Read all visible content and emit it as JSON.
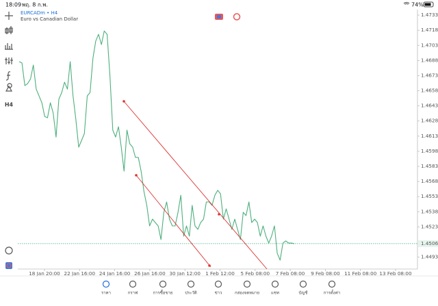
{
  "status_bar": {
    "time": "18:09",
    "date": "พฤ. 8 ก.พ.",
    "battery": "74%"
  },
  "symbol": {
    "name": "EURCADm • H4",
    "description": "Euro vs Canadian Dollar"
  },
  "left_toolbar": {
    "timeframe": "H4"
  },
  "chart": {
    "type": "line",
    "ylim": [
      1.44812,
      1.47378
    ],
    "yticks": [
      {
        "value": 1.4733,
        "label": "1.47330"
      },
      {
        "value": 1.4718,
        "label": "1.47180"
      },
      {
        "value": 1.4703,
        "label": "1.47030"
      },
      {
        "value": 1.4688,
        "label": "1.46880"
      },
      {
        "value": 1.4673,
        "label": "1.46730"
      },
      {
        "value": 1.4658,
        "label": "1.46580"
      },
      {
        "value": 1.4643,
        "label": "1.46430"
      },
      {
        "value": 1.4628,
        "label": "1.46280"
      },
      {
        "value": 1.4613,
        "label": "1.46130"
      },
      {
        "value": 1.4598,
        "label": "1.45980"
      },
      {
        "value": 1.4583,
        "label": "1.45830"
      },
      {
        "value": 1.4568,
        "label": "1.45680"
      },
      {
        "value": 1.4553,
        "label": "1.45530"
      },
      {
        "value": 1.4538,
        "label": "1.45380"
      },
      {
        "value": 1.4523,
        "label": "1.45230"
      },
      {
        "value": 1.4493,
        "label": "1.44930"
      }
    ],
    "current_price": {
      "value": 1.45064,
      "label": "1.45064"
    },
    "x_labels": [
      "18 Jan 20:00",
      "22 Jan 16:00",
      "24 Jan 16:00",
      "26 Jan 16:00",
      "30 Jan 12:00",
      "1 Feb 12:00",
      "5 Feb 08:00",
      "7 Feb 08:00",
      "9 Feb 08:00",
      "11 Feb 08:00",
      "13 Feb 08:00"
    ],
    "series": [
      {
        "color": "#4caf7d",
        "values": [
          1.46869,
          1.46855,
          1.46631,
          1.46651,
          1.46698,
          1.46835,
          1.46596,
          1.46529,
          1.46461,
          1.46325,
          1.46312,
          1.46461,
          1.46359,
          1.46121,
          1.46496,
          1.46563,
          1.46665,
          1.46596,
          1.46869,
          1.46529,
          1.46292,
          1.4602,
          1.46088,
          1.46156,
          1.46529,
          1.46563,
          1.46902,
          1.47073,
          1.4714,
          1.47038,
          1.47173,
          1.4714,
          1.46733,
          1.4619,
          1.46121,
          1.46223,
          1.4602,
          1.45783,
          1.4619,
          1.46054,
          1.4602,
          1.45919,
          1.45919,
          1.45783,
          1.45579,
          1.45443,
          1.4524,
          1.45307,
          1.45273,
          1.4524,
          1.45104,
          1.45375,
          1.45477,
          1.45307,
          1.4524,
          1.4524,
          1.45375,
          1.45544,
          1.45138,
          1.4524,
          1.45138,
          1.45443,
          1.4524,
          1.45206,
          1.45273,
          1.45307,
          1.45477,
          1.45477,
          1.45443,
          1.45544,
          1.45593,
          1.45558,
          1.45307,
          1.45409,
          1.45307,
          1.45206,
          1.45307,
          1.45206,
          1.45104,
          1.45375,
          1.45342,
          1.45477,
          1.45273,
          1.45307,
          1.45273,
          1.45138,
          1.4524,
          1.45138,
          1.45069,
          1.45138,
          1.4524,
          1.44969,
          1.449,
          1.45069,
          1.4509,
          1.45069,
          1.45069,
          1.45064
        ]
      }
    ]
  },
  "bottom_nav": {
    "active": 0,
    "items": [
      "ราคา",
      "กราฟ",
      "การซื้อขาย",
      "ประวัติ",
      "ข่าว",
      "กล่องจดหมาย",
      "แชท",
      "บัญชี",
      "การตั้งค่า"
    ]
  }
}
